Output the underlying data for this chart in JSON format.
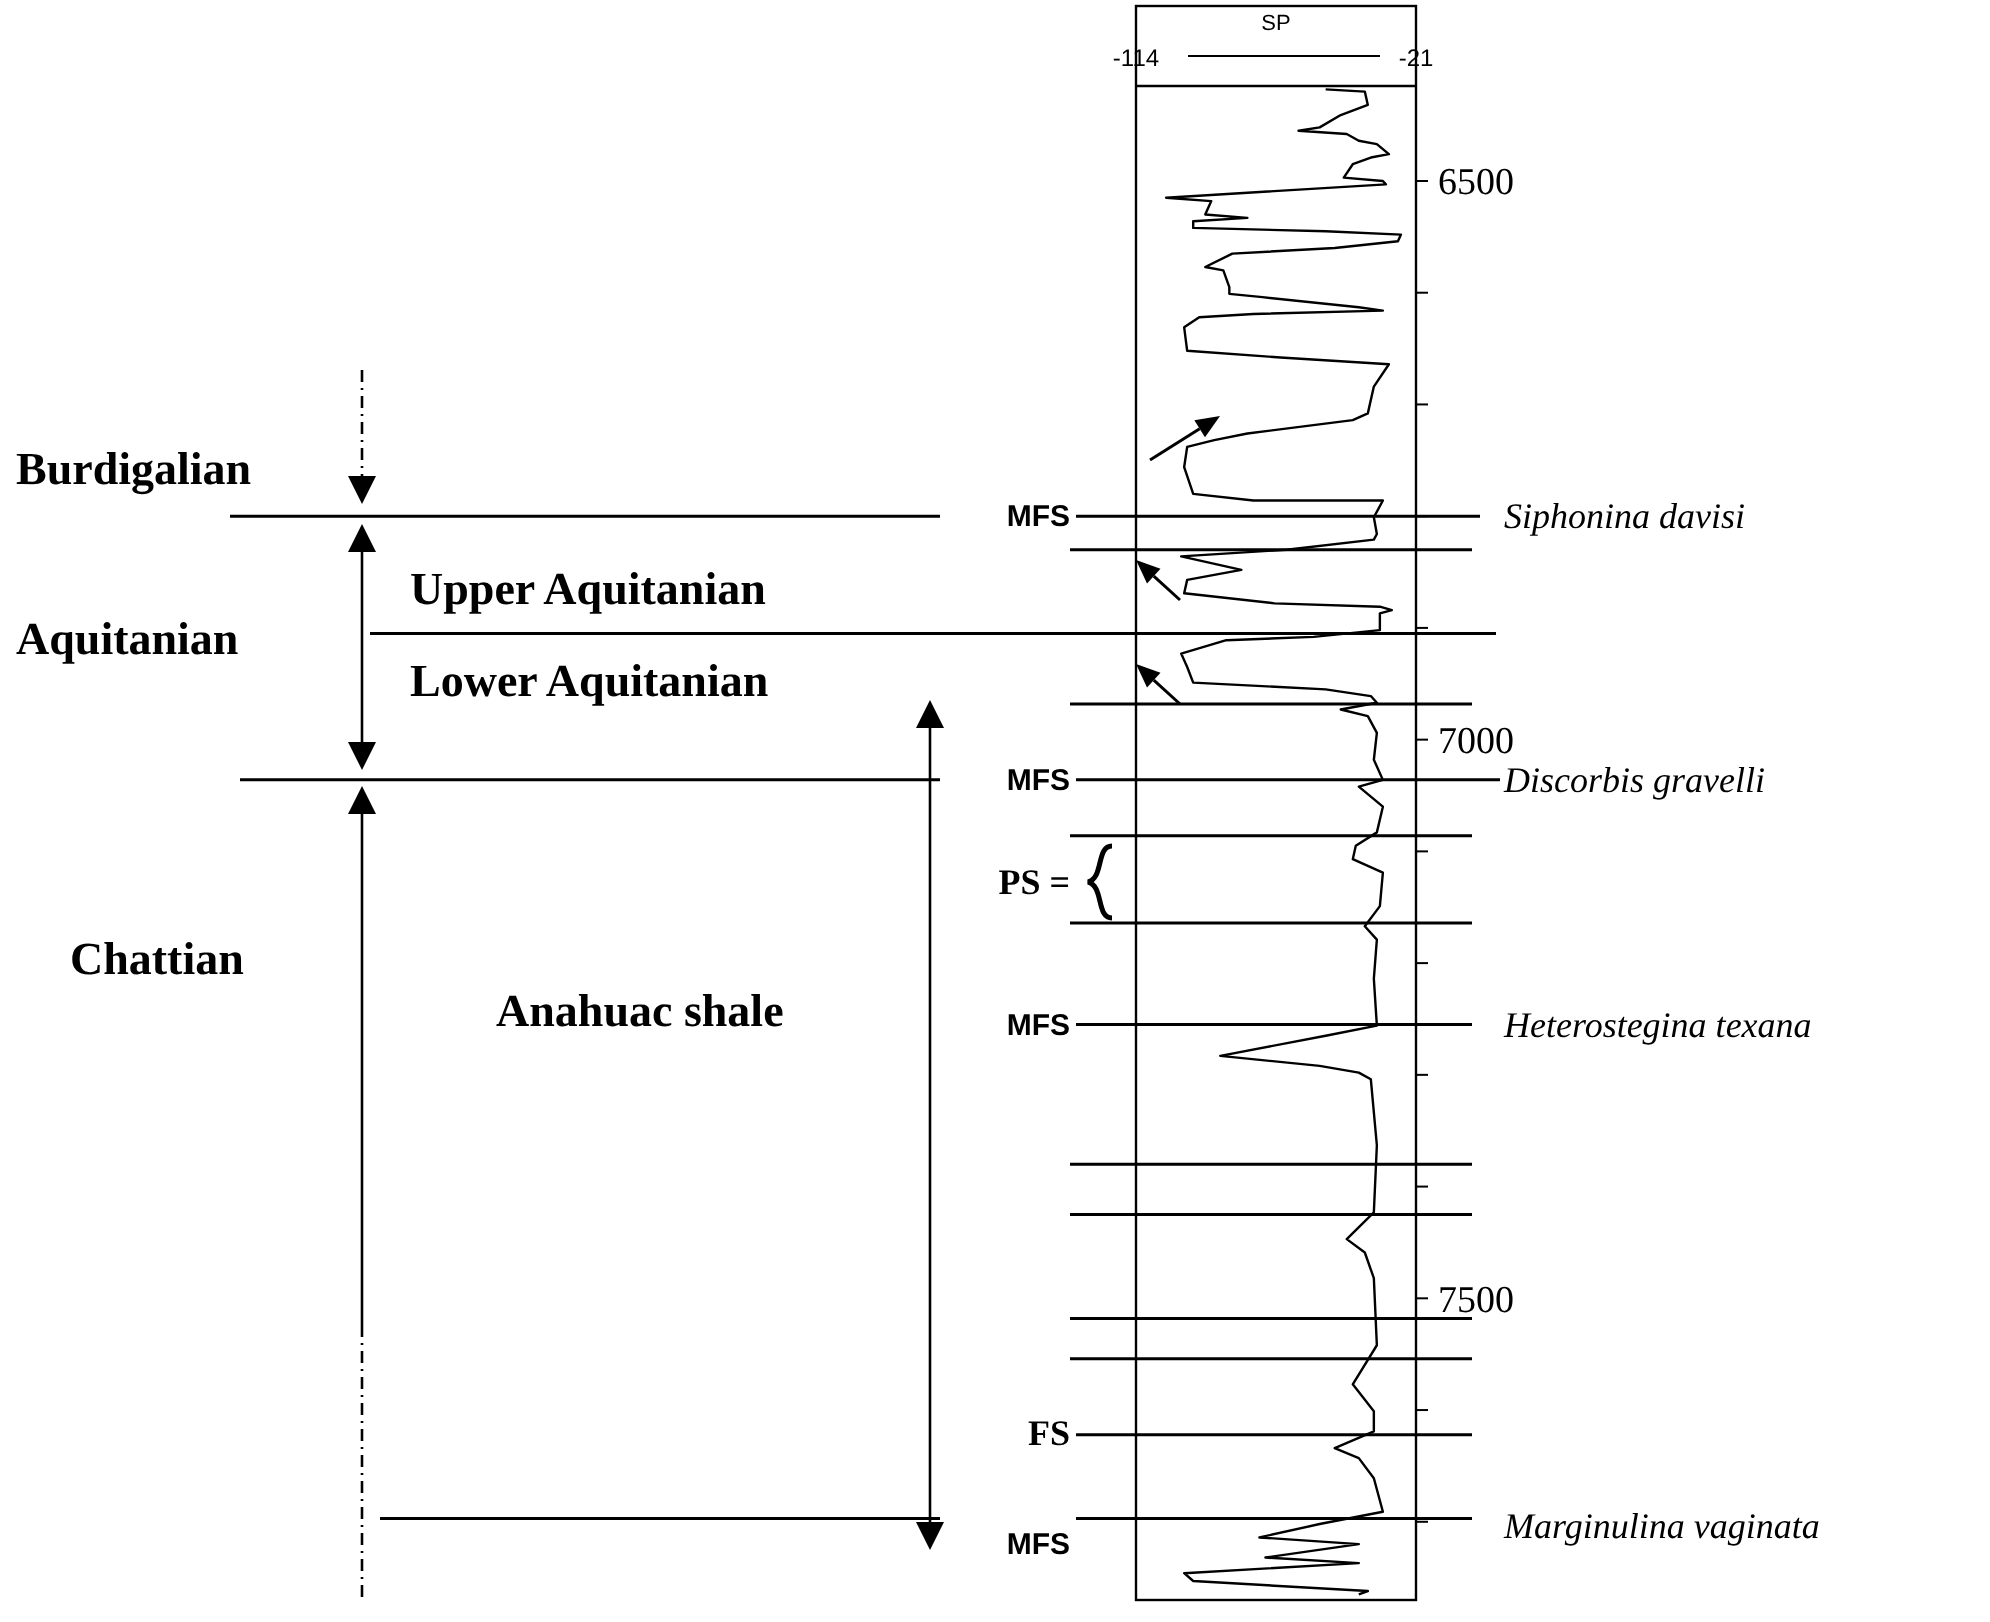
{
  "chart_data": {
    "type": "line",
    "xlabel": "SP",
    "xlim": [
      -114,
      -21
    ],
    "xticks": [
      -114,
      -21
    ],
    "ylim": [
      7770,
      6415
    ],
    "yticks": [
      6500,
      {
        "value": 6600,
        "label": null
      },
      {
        "value": 6700,
        "label": null
      },
      {
        "value": 6800,
        "label": null
      },
      {
        "value": 6900,
        "label": null
      },
      7000,
      {
        "value": 7100,
        "label": null
      },
      {
        "value": 7200,
        "label": null
      },
      {
        "value": 7300,
        "label": null
      },
      {
        "value": 7400,
        "label": null
      },
      7500,
      {
        "value": 7600,
        "label": null
      },
      {
        "value": 7700,
        "label": null
      }
    ],
    "series": [
      {
        "color": "#000000",
        "x": [
          -51,
          -38,
          -37,
          -46,
          -53,
          -60,
          -44,
          -40,
          -34,
          -30,
          -36,
          -42,
          -45,
          -32,
          -31,
          -104,
          -89,
          -91,
          -77,
          -95,
          -95,
          -51,
          -26,
          -27,
          -48,
          -82,
          -91,
          -85,
          -83,
          -83,
          -72,
          -40,
          -32,
          -75,
          -93,
          -98,
          -97,
          -66,
          -30,
          -35,
          -37,
          -42,
          -77,
          -88,
          -97,
          -98,
          -95,
          -75,
          -32,
          -35,
          -34,
          -35,
          -64,
          -99,
          -79,
          -97,
          -98,
          -68,
          -33,
          -29,
          -33,
          -33,
          -55,
          -84,
          -99,
          -97,
          -95,
          -51,
          -36,
          -34,
          -46,
          -37,
          -34,
          -35,
          -32,
          -40,
          -32,
          -34,
          -41,
          -42,
          -32,
          -33,
          -38,
          -34,
          -35,
          -34,
          -51,
          -86,
          -53,
          -40,
          -36,
          -34,
          -35,
          -44,
          -38,
          -35,
          -34,
          -42,
          -35,
          -35,
          -48,
          -40,
          -35,
          -32,
          -53,
          -73,
          -40,
          -71,
          -40,
          -98,
          -95,
          -37,
          -40
        ],
        "values": [
          6418,
          6420,
          6432,
          6441,
          6452,
          6455,
          6458,
          6464,
          6467,
          6476,
          6479,
          6485,
          6497,
          6500,
          6503,
          6515,
          6518,
          6530,
          6533,
          6536,
          6542,
          6545,
          6548,
          6554,
          6560,
          6565,
          6577,
          6580,
          6595,
          6601,
          6604,
          6613,
          6616,
          6619,
          6622,
          6631,
          6652,
          6658,
          6664,
          6684,
          6708,
          6714,
          6726,
          6732,
          6738,
          6756,
          6780,
          6786,
          6786,
          6801,
          6816,
          6821,
          6830,
          6836,
          6848,
          6857,
          6869,
          6878,
          6881,
          6884,
          6887,
          6902,
          6908,
          6911,
          6923,
          6935,
          6949,
          6955,
          6961,
          6967,
          6973,
          6979,
          6994,
          7018,
          7036,
          7042,
          7060,
          7083,
          7095,
          7107,
          7119,
          7149,
          7167,
          7179,
          7214,
          7256,
          7265,
          7283,
          7292,
          7298,
          7304,
          7363,
          7423,
          7447,
          7459,
          7482,
          7542,
          7577,
          7601,
          7619,
          7634,
          7643,
          7661,
          7691,
          7702,
          7714,
          7720,
          7732,
          7737,
          7746,
          7753,
          7762,
          7765
        ]
      }
    ],
    "ref_lines": [
      {
        "axis": "y",
        "value": 6800,
        "label": "MFS"
      },
      {
        "axis": "y",
        "value": 6830,
        "label": null
      },
      {
        "axis": "y",
        "value": 6905,
        "label": null
      },
      {
        "axis": "y",
        "value": 6968,
        "label": null
      },
      {
        "axis": "y",
        "value": 7036,
        "label": "MFS"
      },
      {
        "axis": "y",
        "value": 7086,
        "label": null
      },
      {
        "axis": "y",
        "value": 7164,
        "label": null
      },
      {
        "axis": "y",
        "value": 7255,
        "label": "MFS"
      },
      {
        "axis": "y",
        "value": 7380,
        "label": null
      },
      {
        "axis": "y",
        "value": 7425,
        "label": null
      },
      {
        "axis": "y",
        "value": 7518,
        "label": null
      },
      {
        "axis": "y",
        "value": 7554,
        "label": null
      },
      {
        "axis": "y",
        "value": 7622,
        "label": "FS"
      },
      {
        "axis": "y",
        "value": 7697,
        "label": "MFS"
      }
    ],
    "annotations": [
      "Burdigalian",
      "Aquitanian",
      "Upper Aquitanian",
      "Lower Aquitanian",
      "Chattian",
      "Anahuac shale",
      "Siphonina davisi",
      "Discorbis gravelli",
      "PS =",
      "Heterostegina texana",
      "Marginulina vaginata"
    ]
  }
}
